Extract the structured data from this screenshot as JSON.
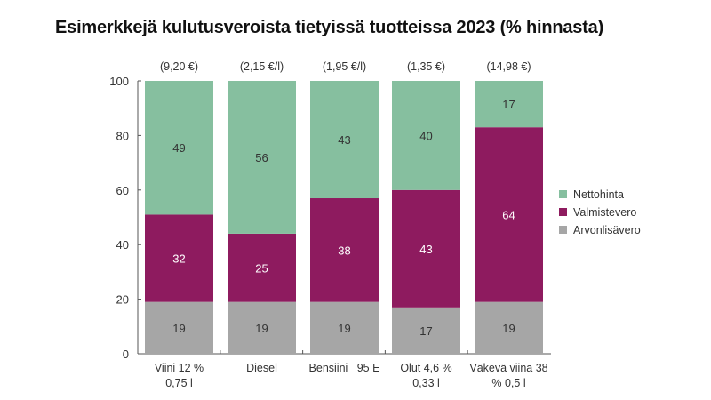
{
  "chart_data": {
    "type": "bar",
    "stacked": true,
    "title": "Esimerkkejä kulutusveroista tietyissä tuotteissa 2023 (% hinnasta)",
    "xlabel": "",
    "ylabel": "",
    "ylim": [
      0,
      100
    ],
    "yticks": [
      "0",
      "20",
      "40",
      "60",
      "80",
      "100"
    ],
    "grid": false,
    "legend_position": "right",
    "categories": [
      [
        "Viini 12 %",
        "0,75 l"
      ],
      [
        "Diesel"
      ],
      [
        "Bensiini   95 E"
      ],
      [
        "Olut 4,6 %",
        "0,33 l"
      ],
      [
        "Väkevä viina 38",
        "% 0,5 l"
      ]
    ],
    "prices": [
      "(9,20 €)",
      "(2,15 €/l)",
      "(1,95 €/l)",
      "(1,35 €)",
      "(14,98 €)"
    ],
    "series": [
      {
        "name": "Arvonlisävero",
        "color": "#a6a6a6",
        "label_color": "#333333",
        "values": [
          19,
          19,
          19,
          17,
          19
        ]
      },
      {
        "name": "Valmistevero",
        "color": "#8e1b5f",
        "label_color": "#ffffff",
        "values": [
          32,
          25,
          38,
          43,
          64
        ]
      },
      {
        "name": "Nettohinta",
        "color": "#86bf9f",
        "label_color": "#333333",
        "values": [
          49,
          56,
          43,
          40,
          17
        ]
      }
    ],
    "legend_order": [
      "Nettohinta",
      "Valmistevero",
      "Arvonlisävero"
    ]
  }
}
